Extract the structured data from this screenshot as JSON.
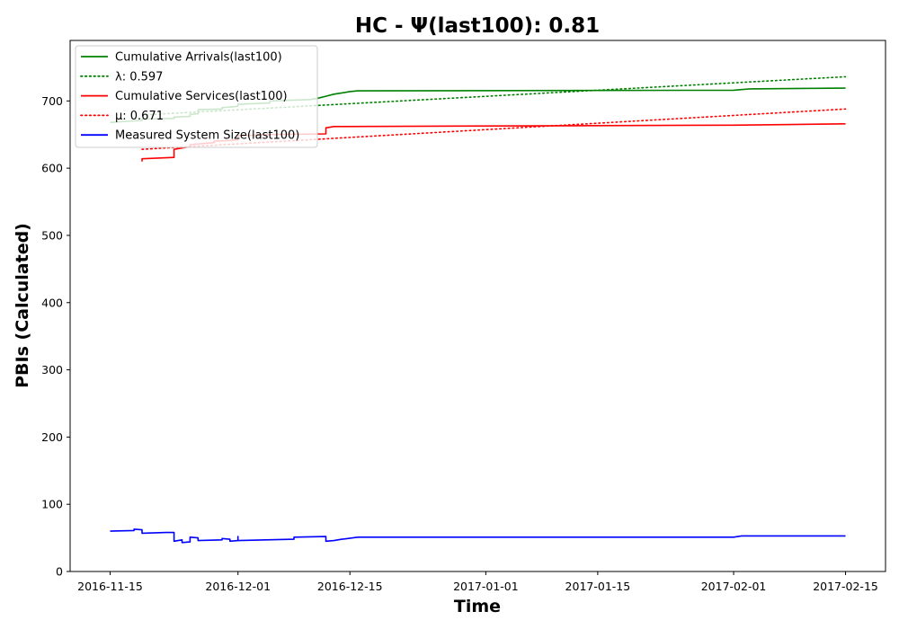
{
  "chart_data": {
    "type": "line",
    "title": "HC -  Ψ(last100): 0.81",
    "xlabel": "Time",
    "ylabel": "PBIs (Calculated)",
    "xlim": [
      "2016-11-10",
      "2017-02-20"
    ],
    "ylim": [
      0,
      790
    ],
    "xticks": [
      "2016-11-15",
      "2016-12-01",
      "2016-12-15",
      "2017-01-01",
      "2017-01-15",
      "2017-02-01",
      "2017-02-15"
    ],
    "yticks": [
      0,
      100,
      200,
      300,
      400,
      500,
      600,
      700
    ],
    "grid": false,
    "legend_position": "top-left",
    "series": [
      {
        "name": "Cumulative Arrivals(last100)",
        "color": "#008000",
        "style": "solid",
        "points": [
          [
            "2016-11-15",
            668
          ],
          [
            "2016-11-19",
            671
          ],
          [
            "2016-11-19",
            673
          ],
          [
            "2016-11-23",
            674
          ],
          [
            "2016-11-23",
            676
          ],
          [
            "2016-11-25",
            677
          ],
          [
            "2016-11-25",
            680
          ],
          [
            "2016-11-26",
            681
          ],
          [
            "2016-11-26",
            687
          ],
          [
            "2016-11-29",
            688
          ],
          [
            "2016-11-29",
            690
          ],
          [
            "2016-12-01",
            692
          ],
          [
            "2016-12-01",
            695
          ],
          [
            "2016-12-05",
            697
          ],
          [
            "2016-12-05",
            700
          ],
          [
            "2016-12-10",
            702
          ],
          [
            "2016-12-11",
            704
          ],
          [
            "2016-12-12",
            707
          ],
          [
            "2016-12-13",
            710
          ],
          [
            "2016-12-14",
            712
          ],
          [
            "2016-12-15",
            714
          ],
          [
            "2016-12-16",
            715
          ],
          [
            "2017-02-01",
            716
          ],
          [
            "2017-02-03",
            718
          ],
          [
            "2017-02-15",
            719
          ]
        ]
      },
      {
        "name": "λ: 0.597",
        "color": "#008000",
        "style": "dotted",
        "points": [
          [
            "2016-11-19",
            679
          ],
          [
            "2017-02-15",
            736
          ]
        ]
      },
      {
        "name": "Cumulative Services(last100)",
        "color": "#ff0000",
        "style": "solid",
        "points": [
          [
            "2016-11-19",
            610
          ],
          [
            "2016-11-19",
            614
          ],
          [
            "2016-11-23",
            616
          ],
          [
            "2016-11-23",
            628
          ],
          [
            "2016-11-25",
            632
          ],
          [
            "2016-11-25",
            635
          ],
          [
            "2016-11-28",
            638
          ],
          [
            "2016-11-28",
            640
          ],
          [
            "2016-12-01",
            642
          ],
          [
            "2016-12-01",
            648
          ],
          [
            "2016-12-05",
            650
          ],
          [
            "2016-12-12",
            651
          ],
          [
            "2016-12-12",
            660
          ],
          [
            "2016-12-13",
            662
          ],
          [
            "2017-02-01",
            664
          ],
          [
            "2017-02-15",
            666
          ]
        ]
      },
      {
        "name": "μ: 0.671",
        "color": "#ff0000",
        "style": "dotted",
        "points": [
          [
            "2016-11-19",
            628
          ],
          [
            "2017-02-15",
            688
          ]
        ]
      },
      {
        "name": "Measured System Size(last100)",
        "color": "#0000ff",
        "style": "solid",
        "points": [
          [
            "2016-11-15",
            60
          ],
          [
            "2016-11-18",
            61
          ],
          [
            "2016-11-18",
            63
          ],
          [
            "2016-11-19",
            62
          ],
          [
            "2016-11-19",
            57
          ],
          [
            "2016-11-22",
            58
          ],
          [
            "2016-11-23",
            58
          ],
          [
            "2016-11-23",
            45
          ],
          [
            "2016-11-24",
            47
          ],
          [
            "2016-11-24",
            43
          ],
          [
            "2016-11-25",
            44
          ],
          [
            "2016-11-25",
            51
          ],
          [
            "2016-11-26",
            50
          ],
          [
            "2016-11-26",
            46
          ],
          [
            "2016-11-29",
            47
          ],
          [
            "2016-11-29",
            49
          ],
          [
            "2016-11-30",
            48
          ],
          [
            "2016-11-30",
            45
          ],
          [
            "2016-12-01",
            46
          ],
          [
            "2016-12-01",
            52
          ],
          [
            "2016-12-01",
            46
          ],
          [
            "2016-12-08",
            48
          ],
          [
            "2016-12-08",
            51
          ],
          [
            "2016-12-12",
            52
          ],
          [
            "2016-12-12",
            45
          ],
          [
            "2016-12-13",
            46
          ],
          [
            "2016-12-14",
            48
          ],
          [
            "2016-12-16",
            51
          ],
          [
            "2017-02-01",
            51
          ],
          [
            "2017-02-02",
            53
          ],
          [
            "2017-02-15",
            53
          ]
        ]
      }
    ],
    "legend": [
      {
        "label": "Cumulative Arrivals(last100)",
        "color": "#008000",
        "style": "solid"
      },
      {
        "label": "λ: 0.597",
        "color": "#008000",
        "style": "dotted"
      },
      {
        "label": "Cumulative Services(last100)",
        "color": "#ff0000",
        "style": "solid"
      },
      {
        "label": "μ: 0.671",
        "color": "#ff0000",
        "style": "dotted"
      },
      {
        "label": "Measured System Size(last100)",
        "color": "#0000ff",
        "style": "solid"
      }
    ]
  }
}
